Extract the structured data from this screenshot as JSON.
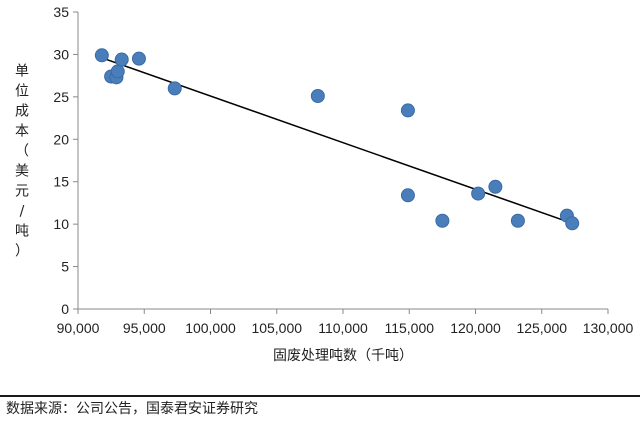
{
  "chart_data": {
    "type": "scatter",
    "title": "",
    "xlabel": "固废处理吨数（千吨）",
    "ylabel": "单位成本（美元/吨）",
    "xlim": [
      90000,
      130000
    ],
    "ylim": [
      0,
      35
    ],
    "x_ticks": [
      90000,
      95000,
      100000,
      105000,
      110000,
      115000,
      120000,
      125000,
      130000
    ],
    "x_tick_labels": [
      "90,000",
      "95,000",
      "100,000",
      "105,000",
      "110,000",
      "115,000",
      "120,000",
      "125,000",
      "130,000"
    ],
    "y_ticks": [
      0,
      5,
      10,
      15,
      20,
      25,
      30,
      35
    ],
    "y_tick_labels": [
      "0",
      "5",
      "10",
      "15",
      "20",
      "25",
      "30",
      "35"
    ],
    "grid": false,
    "legend": "none",
    "points": [
      {
        "x": 91800,
        "y": 29.9
      },
      {
        "x": 92500,
        "y": 27.4
      },
      {
        "x": 92900,
        "y": 27.3
      },
      {
        "x": 93000,
        "y": 28.0
      },
      {
        "x": 93300,
        "y": 29.4
      },
      {
        "x": 94600,
        "y": 29.5
      },
      {
        "x": 97300,
        "y": 26.0
      },
      {
        "x": 108100,
        "y": 25.1
      },
      {
        "x": 114900,
        "y": 23.4
      },
      {
        "x": 114900,
        "y": 13.4
      },
      {
        "x": 117500,
        "y": 10.4
      },
      {
        "x": 120200,
        "y": 13.6
      },
      {
        "x": 121500,
        "y": 14.4
      },
      {
        "x": 123200,
        "y": 10.4
      },
      {
        "x": 126900,
        "y": 11.0
      },
      {
        "x": 127300,
        "y": 10.1
      }
    ],
    "trendline": {
      "type": "linear",
      "x": [
        91800,
        127300
      ],
      "y": [
        29.6,
        10.1
      ]
    },
    "point_color": "#4A7EBB",
    "point_edge_color": "#3A6AA6",
    "trendline_color": "#000000"
  },
  "footer": {
    "source": "数据来源：公司公告，国泰君安证券研究"
  }
}
